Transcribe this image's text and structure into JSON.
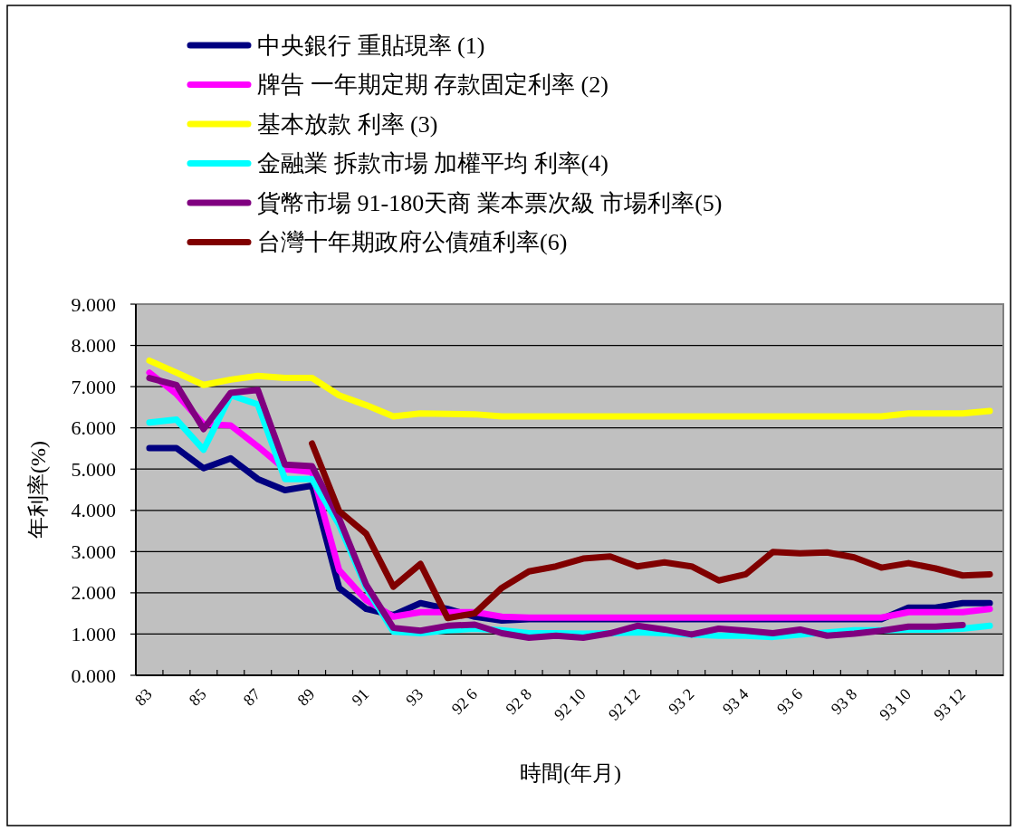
{
  "chart_data": {
    "type": "line",
    "xlabel": "時間(年月)",
    "ylabel": "年利率(%)",
    "categories": [
      "83",
      null,
      "85",
      null,
      "87",
      null,
      "89",
      null,
      "91",
      null,
      "93",
      null,
      "92 6",
      null,
      "92 8",
      null,
      "92 10",
      null,
      "92 12",
      null,
      "93 2",
      null,
      "93 4",
      null,
      "93 6",
      null,
      "93 8",
      null,
      "93 10",
      null,
      "93 12",
      null
    ],
    "ylim": [
      0,
      9
    ],
    "yticks": [
      {
        "value": 0,
        "label": "0.000"
      },
      {
        "value": 1,
        "label": "1.000"
      },
      {
        "value": 2,
        "label": "2.000"
      },
      {
        "value": 3,
        "label": "3.000"
      },
      {
        "value": 4,
        "label": "4.000"
      },
      {
        "value": 5,
        "label": "5.000"
      },
      {
        "value": 6,
        "label": "6.000"
      },
      {
        "value": 7,
        "label": "7.000"
      },
      {
        "value": 8,
        "label": "8.000"
      },
      {
        "value": 9,
        "label": "9.000"
      }
    ],
    "grid": "y",
    "legend": "top",
    "series": [
      {
        "name": "中央銀行  重貼現率 (1)",
        "color": "#000080",
        "values": [
          5.51,
          5.51,
          5.02,
          5.26,
          4.76,
          4.49,
          4.6,
          2.12,
          1.61,
          1.46,
          1.75,
          1.61,
          1.42,
          1.33,
          1.36,
          1.36,
          1.36,
          1.36,
          1.36,
          1.36,
          1.36,
          1.36,
          1.36,
          1.36,
          1.36,
          1.36,
          1.36,
          1.36,
          1.64,
          1.64,
          1.75,
          1.75
        ]
      },
      {
        "name": "牌告 一年期定期 存款固定利率 (2)",
        "color": "#ff00ff",
        "values": [
          7.34,
          6.82,
          6.09,
          6.06,
          5.55,
          5.0,
          4.93,
          2.55,
          1.82,
          1.42,
          1.53,
          1.53,
          1.53,
          1.42,
          1.4,
          1.4,
          1.4,
          1.4,
          1.4,
          1.4,
          1.4,
          1.4,
          1.4,
          1.4,
          1.4,
          1.4,
          1.4,
          1.4,
          1.53,
          1.53,
          1.53,
          1.61
        ]
      },
      {
        "name": "基本放款 利率 (3)",
        "color": "#ffff00",
        "values": [
          7.63,
          7.34,
          7.04,
          7.17,
          7.26,
          7.21,
          7.21,
          6.79,
          6.55,
          6.28,
          6.35,
          6.34,
          6.33,
          6.28,
          6.28,
          6.28,
          6.28,
          6.28,
          6.28,
          6.28,
          6.28,
          6.28,
          6.28,
          6.28,
          6.28,
          6.28,
          6.28,
          6.28,
          6.35,
          6.35,
          6.35,
          6.41
        ]
      },
      {
        "name": "金融業 拆款市場 加權平均 利率(4)",
        "color": "#00ffff",
        "values": [
          6.13,
          6.2,
          5.47,
          6.79,
          6.57,
          4.76,
          4.76,
          3.65,
          2.12,
          1.06,
          1.02,
          1.09,
          1.13,
          1.09,
          1.02,
          1.02,
          1.01,
          1.02,
          1.04,
          1.02,
          0.99,
          0.96,
          0.96,
          0.93,
          0.99,
          1.04,
          1.09,
          1.09,
          1.11,
          1.11,
          1.13,
          1.2
        ]
      },
      {
        "name": "貨幣市場 91-180天商 業本票次級 市場利率(5)",
        "color": "#800080",
        "values": [
          7.21,
          7.04,
          5.97,
          6.85,
          6.92,
          5.11,
          5.07,
          3.8,
          2.19,
          1.15,
          1.08,
          1.2,
          1.23,
          1.02,
          0.91,
          0.96,
          0.91,
          1.02,
          1.2,
          1.11,
          0.99,
          1.13,
          1.08,
          1.02,
          1.11,
          0.96,
          1.01,
          1.08,
          1.18,
          1.18,
          1.22,
          null
        ]
      },
      {
        "name": "台灣十年期政府公債殖利率(6)",
        "color": "#800000",
        "values": [
          null,
          null,
          null,
          null,
          null,
          null,
          5.62,
          3.98,
          3.43,
          2.15,
          2.7,
          1.39,
          1.5,
          2.12,
          2.52,
          2.64,
          2.83,
          2.88,
          2.64,
          2.74,
          2.64,
          2.3,
          2.45,
          2.99,
          2.96,
          2.98,
          2.86,
          2.61,
          2.72,
          2.59,
          2.42,
          2.45
        ]
      }
    ]
  }
}
